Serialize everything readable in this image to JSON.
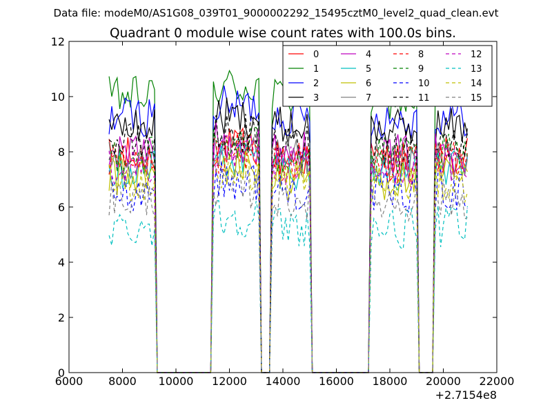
{
  "file_title": "Data file: modeM0/AS1G08_039T01_9000002292_15495cztM0_level2_quad_clean.evt",
  "chart_data": {
    "type": "line",
    "title": "Quadrant 0 module wise count rates with 100.0s bins.",
    "xlabel": "",
    "ylabel": "",
    "xlim": [
      6000,
      22000
    ],
    "ylim": [
      0,
      12
    ],
    "x_offset_label": "+2.7154e8",
    "xticks": [
      "6000",
      "8000",
      "10000",
      "12000",
      "14000",
      "16000",
      "18000",
      "20000",
      "22000"
    ],
    "yticks": [
      "0",
      "2",
      "4",
      "6",
      "8",
      "10",
      "12"
    ],
    "grid": false,
    "legend_position": "top-right",
    "legend_columns": 4,
    "segments": [
      {
        "start": 7500,
        "end": 9200,
        "on": true
      },
      {
        "start": 9300,
        "end": 11300,
        "on": false
      },
      {
        "start": 11400,
        "end": 13100,
        "on": true
      },
      {
        "start": 13200,
        "end": 13500,
        "on": false
      },
      {
        "start": 13600,
        "end": 15000,
        "on": true
      },
      {
        "start": 15100,
        "end": 17200,
        "on": false
      },
      {
        "start": 17300,
        "end": 19000,
        "on": true
      },
      {
        "start": 19100,
        "end": 19600,
        "on": false
      },
      {
        "start": 19700,
        "end": 20900,
        "on": true
      }
    ],
    "series": [
      {
        "name": "0",
        "color": "#ff0000",
        "style": "solid",
        "level": 7.8
      },
      {
        "name": "1",
        "color": "#008000",
        "style": "solid",
        "level": 10.0
      },
      {
        "name": "2",
        "color": "#0000ff",
        "style": "solid",
        "level": 9.3
      },
      {
        "name": "3",
        "color": "#000000",
        "style": "solid",
        "level": 8.9
      },
      {
        "name": "4",
        "color": "#bf00bf",
        "style": "solid",
        "level": 8.0
      },
      {
        "name": "5",
        "color": "#00bfbf",
        "style": "solid",
        "level": 7.4
      },
      {
        "name": "6",
        "color": "#bfbf00",
        "style": "solid",
        "level": 7.1
      },
      {
        "name": "7",
        "color": "#808080",
        "style": "solid",
        "level": 7.7
      },
      {
        "name": "8",
        "color": "#ff0000",
        "style": "dashed",
        "level": 7.6
      },
      {
        "name": "9",
        "color": "#008000",
        "style": "dashed",
        "level": 7.9
      },
      {
        "name": "10",
        "color": "#0000ff",
        "style": "dashed",
        "level": 6.6
      },
      {
        "name": "11",
        "color": "#000000",
        "style": "dashed",
        "level": 8.3
      },
      {
        "name": "12",
        "color": "#bf00bf",
        "style": "dashed",
        "level": 7.5
      },
      {
        "name": "13",
        "color": "#00bfbf",
        "style": "dashed",
        "level": 5.3
      },
      {
        "name": "14",
        "color": "#bfbf00",
        "style": "dashed",
        "level": 6.9
      },
      {
        "name": "15",
        "color": "#808080",
        "style": "dashed",
        "level": 6.3
      }
    ]
  }
}
